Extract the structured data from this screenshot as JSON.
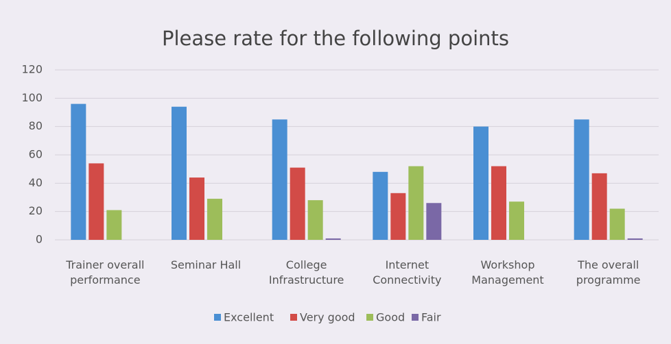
{
  "chart_data": {
    "type": "bar",
    "title": "Please rate for the following points",
    "categories": [
      "Trainer overall performance",
      "Seminar Hall",
      "College Infrastructure",
      "Internet Connectivity",
      "Workshop Management",
      "The overall programme"
    ],
    "series": [
      {
        "name": "Excellent",
        "color": "#4a8fd3",
        "values": [
          96,
          94,
          85,
          48,
          80,
          85
        ]
      },
      {
        "name": "Very good",
        "color": "#d24b47",
        "values": [
          54,
          44,
          51,
          33,
          52,
          47
        ]
      },
      {
        "name": "Good",
        "color": "#9dbd5a",
        "values": [
          21,
          29,
          28,
          52,
          27,
          22
        ]
      },
      {
        "name": "Fair",
        "color": "#7a68a6",
        "values": [
          0,
          0,
          1,
          26,
          0,
          1
        ]
      }
    ],
    "ylim": [
      0,
      120
    ],
    "yticks": [
      0,
      20,
      40,
      60,
      80,
      100,
      120
    ],
    "grid": true,
    "legend": "bottom"
  }
}
